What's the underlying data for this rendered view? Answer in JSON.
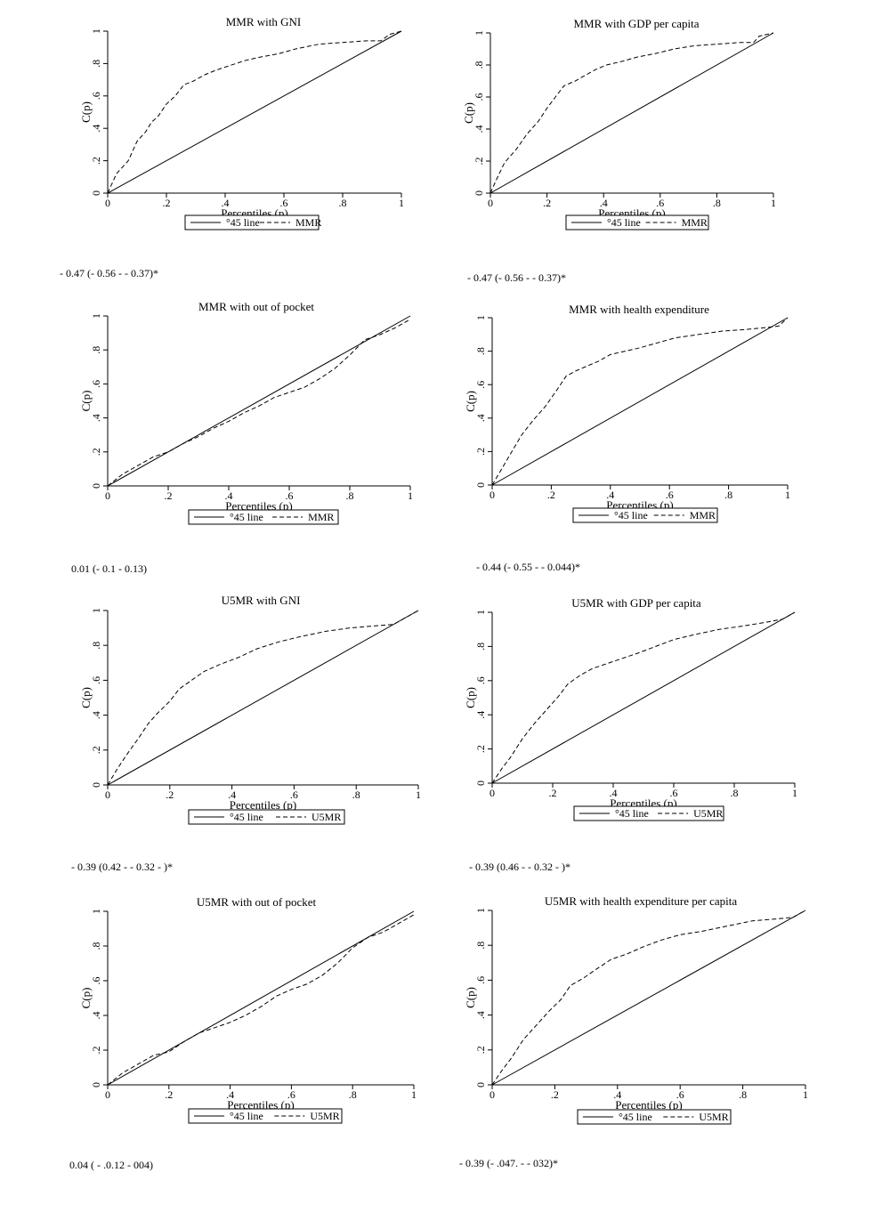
{
  "legend_line_label": "°45 line",
  "chart_data": [
    {
      "type": "line",
      "title": "MMR with GNI",
      "xlabel": "Percentiles (p)",
      "ylabel": "C(p)",
      "xlim": [
        0,
        1
      ],
      "ylim": [
        0,
        1
      ],
      "x_ticks": [
        "0",
        ".2",
        ".4",
        ".6",
        ".8",
        "1"
      ],
      "y_ticks": [
        "0",
        ".2",
        ".4",
        ".6",
        ".8",
        "1"
      ],
      "series": [
        {
          "name": "°45 line",
          "style": "solid",
          "x": [
            0,
            1
          ],
          "y": [
            0,
            1
          ]
        },
        {
          "name": "MMR",
          "style": "dashed",
          "x": [
            0,
            0.03,
            0.07,
            0.1,
            0.13,
            0.15,
            0.17,
            0.2,
            0.23,
            0.26,
            0.29,
            0.33,
            0.37,
            0.42,
            0.47,
            0.52,
            0.58,
            0.64,
            0.72,
            0.8,
            0.88,
            0.93,
            0.96,
            1
          ],
          "y": [
            0,
            0.12,
            0.2,
            0.32,
            0.38,
            0.44,
            0.47,
            0.55,
            0.6,
            0.67,
            0.69,
            0.73,
            0.76,
            0.79,
            0.82,
            0.84,
            0.86,
            0.89,
            0.92,
            0.93,
            0.94,
            0.94,
            0.98,
            1
          ]
        }
      ],
      "coefficient": "- 0.47 (- 0.56 - - 0.37)*"
    },
    {
      "type": "line",
      "title": "MMR with GDP per capita",
      "xlabel": "Percentiles (p)",
      "ylabel": "C(p)",
      "xlim": [
        0,
        1
      ],
      "ylim": [
        0,
        1
      ],
      "x_ticks": [
        "0",
        ".2",
        ".4",
        ".6",
        ".8",
        "1"
      ],
      "y_ticks": [
        "0",
        ".2",
        ".4",
        ".6",
        ".8",
        "1"
      ],
      "series": [
        {
          "name": "°45 line",
          "style": "solid",
          "x": [
            0,
            1
          ],
          "y": [
            0,
            1
          ]
        },
        {
          "name": "MMR",
          "style": "dashed",
          "x": [
            0,
            0.02,
            0.05,
            0.09,
            0.13,
            0.17,
            0.2,
            0.23,
            0.26,
            0.3,
            0.33,
            0.37,
            0.41,
            0.46,
            0.52,
            0.58,
            0.65,
            0.72,
            0.8,
            0.88,
            0.93,
            0.95,
            1
          ],
          "y": [
            0,
            0.08,
            0.19,
            0.27,
            0.37,
            0.45,
            0.53,
            0.6,
            0.67,
            0.7,
            0.73,
            0.77,
            0.8,
            0.82,
            0.85,
            0.87,
            0.9,
            0.92,
            0.93,
            0.94,
            0.94,
            0.98,
            1
          ]
        }
      ],
      "coefficient": "- 0.47 (- 0.56 - - 0.37)*"
    },
    {
      "type": "line",
      "title": "MMR with out of pocket",
      "xlabel": "Percentiles (p)",
      "ylabel": "C(p)",
      "xlim": [
        0,
        1
      ],
      "ylim": [
        0,
        1
      ],
      "x_ticks": [
        "0",
        ".2",
        ".4",
        ".6",
        ".8",
        "1"
      ],
      "y_ticks": [
        "0",
        ".2",
        ".4",
        ".6",
        ".8",
        "1"
      ],
      "series": [
        {
          "name": "°45 line",
          "style": "solid",
          "x": [
            0,
            1
          ],
          "y": [
            0,
            1
          ]
        },
        {
          "name": "MMR",
          "style": "dashed",
          "x": [
            0,
            0.05,
            0.1,
            0.15,
            0.2,
            0.25,
            0.3,
            0.35,
            0.4,
            0.45,
            0.5,
            0.55,
            0.6,
            0.65,
            0.7,
            0.75,
            0.8,
            0.85,
            0.9,
            0.95,
            1
          ],
          "y": [
            0,
            0.07,
            0.12,
            0.17,
            0.2,
            0.25,
            0.29,
            0.34,
            0.38,
            0.43,
            0.47,
            0.52,
            0.55,
            0.58,
            0.63,
            0.69,
            0.77,
            0.86,
            0.89,
            0.93,
            0.98
          ]
        }
      ],
      "coefficient": "0.01  (- 0.1 - 0.13)"
    },
    {
      "type": "line",
      "title": "MMR with health expenditure",
      "xlabel": "Percentiles (p)",
      "ylabel": "C(p)",
      "xlim": [
        0,
        1
      ],
      "ylim": [
        0,
        1
      ],
      "x_ticks": [
        "0",
        ".2",
        ".4",
        ".6",
        ".8",
        "1"
      ],
      "y_ticks": [
        "0",
        ".2",
        ".4",
        ".6",
        ".8",
        "1"
      ],
      "series": [
        {
          "name": "°45 line",
          "style": "solid",
          "x": [
            0,
            1
          ],
          "y": [
            0,
            1
          ]
        },
        {
          "name": "MMR",
          "style": "dashed",
          "x": [
            0,
            0.03,
            0.06,
            0.1,
            0.14,
            0.18,
            0.22,
            0.25,
            0.28,
            0.32,
            0.36,
            0.4,
            0.45,
            0.5,
            0.56,
            0.62,
            0.7,
            0.78,
            0.86,
            0.92,
            0.97,
            1
          ],
          "y": [
            0,
            0.09,
            0.18,
            0.3,
            0.39,
            0.47,
            0.57,
            0.65,
            0.68,
            0.71,
            0.74,
            0.78,
            0.8,
            0.82,
            0.85,
            0.88,
            0.9,
            0.92,
            0.93,
            0.94,
            0.95,
            1
          ]
        }
      ],
      "coefficient": "- 0.44 (- 0.55 - - 0.044)*"
    },
    {
      "type": "line",
      "title": "U5MR with GNI",
      "xlabel": "Percentiles (p)",
      "ylabel": "C(p)",
      "xlim": [
        0,
        1
      ],
      "ylim": [
        0,
        1
      ],
      "x_ticks": [
        "0",
        ".2",
        ".4",
        ".6",
        ".8",
        "1"
      ],
      "y_ticks": [
        "0",
        ".2",
        ".4",
        ".6",
        ".8",
        "1"
      ],
      "series": [
        {
          "name": "°45 line",
          "style": "solid",
          "x": [
            0,
            1
          ],
          "y": [
            0,
            1
          ]
        },
        {
          "name": "U5MR",
          "style": "dashed",
          "x": [
            0,
            0.03,
            0.06,
            0.1,
            0.13,
            0.16,
            0.2,
            0.23,
            0.27,
            0.31,
            0.36,
            0.42,
            0.48,
            0.55,
            0.62,
            0.7,
            0.78,
            0.85,
            0.92,
            0.96,
            1
          ],
          "y": [
            0,
            0.09,
            0.17,
            0.27,
            0.35,
            0.41,
            0.48,
            0.55,
            0.6,
            0.65,
            0.69,
            0.73,
            0.78,
            0.82,
            0.85,
            0.88,
            0.9,
            0.91,
            0.92,
            0.96,
            1
          ]
        }
      ],
      "coefficient": "- 0.39  (0.42 - - 0.32 - )*"
    },
    {
      "type": "line",
      "title": "U5MR with GDP per capita",
      "xlabel": "Percentiles (p)",
      "ylabel": "C(p)",
      "xlim": [
        0,
        1
      ],
      "ylim": [
        0,
        1
      ],
      "x_ticks": [
        "0",
        ".2",
        ".4",
        ".6",
        ".8",
        "1"
      ],
      "y_ticks": [
        "0",
        ".2",
        ".4",
        ".6",
        ".8",
        "1"
      ],
      "series": [
        {
          "name": "°45 line",
          "style": "solid",
          "x": [
            0,
            1
          ],
          "y": [
            0,
            1
          ]
        },
        {
          "name": "U5MR",
          "style": "dashed",
          "x": [
            0,
            0.03,
            0.06,
            0.1,
            0.14,
            0.18,
            0.22,
            0.25,
            0.29,
            0.33,
            0.38,
            0.43,
            0.48,
            0.54,
            0.6,
            0.67,
            0.75,
            0.83,
            0.9,
            0.96,
            1
          ],
          "y": [
            0,
            0.08,
            0.15,
            0.26,
            0.35,
            0.43,
            0.51,
            0.58,
            0.63,
            0.67,
            0.7,
            0.73,
            0.76,
            0.8,
            0.84,
            0.87,
            0.9,
            0.92,
            0.94,
            0.96,
            1
          ]
        }
      ],
      "coefficient": "- 0.39  (0.46 - - 0.32 - )*"
    },
    {
      "type": "line",
      "title": "U5MR with out of pocket",
      "xlabel": "Percentiles (p)",
      "ylabel": "C(p)",
      "xlim": [
        0,
        1
      ],
      "ylim": [
        0,
        1
      ],
      "x_ticks": [
        "0",
        ".2",
        ".4",
        ".6",
        ".8",
        "1"
      ],
      "y_ticks": [
        "0",
        ".2",
        ".4",
        ".6",
        ".8",
        "1"
      ],
      "series": [
        {
          "name": "°45 line",
          "style": "solid",
          "x": [
            0,
            1
          ],
          "y": [
            0,
            1
          ]
        },
        {
          "name": "U5MR",
          "style": "dashed",
          "x": [
            0,
            0.05,
            0.1,
            0.15,
            0.2,
            0.25,
            0.3,
            0.35,
            0.4,
            0.45,
            0.5,
            0.55,
            0.6,
            0.65,
            0.7,
            0.75,
            0.8,
            0.85,
            0.9,
            0.95,
            1
          ],
          "y": [
            0,
            0.07,
            0.12,
            0.17,
            0.19,
            0.25,
            0.3,
            0.33,
            0.36,
            0.4,
            0.45,
            0.51,
            0.55,
            0.58,
            0.63,
            0.7,
            0.79,
            0.85,
            0.88,
            0.93,
            0.98
          ]
        }
      ],
      "coefficient": "0.04  ( - .0.12 - 004)"
    },
    {
      "type": "line",
      "title": "U5MR with health expenditure per capita",
      "xlabel": "Percentiles (p)",
      "ylabel": "C(p)",
      "xlim": [
        0,
        1
      ],
      "ylim": [
        0,
        1
      ],
      "x_ticks": [
        "0",
        ".2",
        ".4",
        ".6",
        ".8",
        "1"
      ],
      "y_ticks": [
        "0",
        ".2",
        ".4",
        ".6",
        ".8",
        "1"
      ],
      "series": [
        {
          "name": "°45 line",
          "style": "solid",
          "x": [
            0,
            1
          ],
          "y": [
            0,
            1
          ]
        },
        {
          "name": "U5MR",
          "style": "dashed",
          "x": [
            0,
            0.03,
            0.06,
            0.1,
            0.14,
            0.18,
            0.22,
            0.25,
            0.29,
            0.33,
            0.38,
            0.43,
            0.48,
            0.54,
            0.6,
            0.67,
            0.75,
            0.83,
            0.9,
            0.96,
            1
          ],
          "y": [
            0,
            0.08,
            0.15,
            0.26,
            0.34,
            0.42,
            0.49,
            0.57,
            0.61,
            0.66,
            0.72,
            0.75,
            0.79,
            0.83,
            0.86,
            0.88,
            0.91,
            0.94,
            0.95,
            0.96,
            1
          ]
        }
      ],
      "coefficient": "- 0.39  (- .047. - - 032)*"
    }
  ]
}
